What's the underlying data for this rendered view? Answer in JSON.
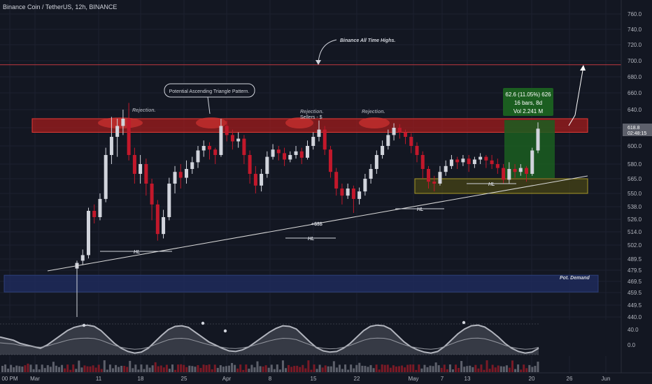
{
  "chart_data": {
    "type": "candlestick",
    "title": "Binance Coin / TetherUS, 12h, BINANCE",
    "y_ticks": [
      "760.0",
      "740.0",
      "720.0",
      "700.0",
      "680.0",
      "660.0",
      "640.0",
      "620.0",
      "600.0",
      "580.0",
      "565.0",
      "550.0",
      "538.0",
      "526.0",
      "514.0",
      "502.0",
      "489.5",
      "479.5",
      "469.5",
      "459.5",
      "449.5",
      "440.0"
    ],
    "x_ticks": [
      "00 PM",
      "Mar",
      "11",
      "18",
      "25",
      "Apr",
      "8",
      "15",
      "22",
      "May",
      "7",
      "13",
      "20",
      "26",
      "Jun"
    ],
    "indicator_ticks": [
      "40.0",
      "0.0"
    ],
    "price_label": {
      "price": "618.8",
      "countdown": "02:48:15"
    },
    "ath_level": 695,
    "annotations": {
      "title_box": "Potential Ascending Triangle Pattern.",
      "ath": "Binance All Time Highs.",
      "rejections": [
        "Rejection.",
        "Rejection.",
        "Rejection."
      ],
      "sellers": "Sellers - $",
      "liquidity": "+$$$",
      "hl": [
        "HL",
        "HL",
        "HL",
        "HL"
      ],
      "demand": "Pot. Demand"
    },
    "measure": {
      "line1": "62.6 (11.05%) 626",
      "line2": "16 bars, 8d",
      "line3": "Vol 2.241 M"
    },
    "zones": {
      "resistance": [
        615,
        630
      ],
      "pot_demand": [
        460,
        475
      ],
      "support": [
        550,
        565
      ]
    },
    "candles": [
      [
        481,
        486,
        439,
        488
      ],
      [
        488,
        493,
        484,
        498
      ],
      [
        493,
        534,
        490,
        537
      ],
      [
        534,
        528,
        522,
        540
      ],
      [
        528,
        545,
        525,
        550
      ],
      [
        545,
        590,
        542,
        598
      ],
      [
        590,
        610,
        580,
        632
      ],
      [
        610,
        622,
        588,
        630
      ],
      [
        622,
        630,
        612,
        640
      ],
      [
        630,
        590,
        584,
        648
      ],
      [
        590,
        570,
        560,
        598
      ],
      [
        570,
        580,
        560,
        590
      ],
      [
        580,
        560,
        548,
        586
      ],
      [
        560,
        540,
        525,
        565
      ],
      [
        540,
        512,
        506,
        544
      ],
      [
        512,
        528,
        508,
        535
      ],
      [
        528,
        560,
        525,
        566
      ],
      [
        560,
        572,
        550,
        578
      ],
      [
        572,
        566,
        555,
        580
      ],
      [
        566,
        575,
        560,
        584
      ],
      [
        575,
        582,
        570,
        588
      ],
      [
        582,
        595,
        576,
        600
      ],
      [
        595,
        600,
        588,
        606
      ],
      [
        600,
        596,
        585,
        604
      ],
      [
        596,
        590,
        580,
        598
      ],
      [
        590,
        622,
        588,
        630
      ],
      [
        622,
        612,
        605,
        628
      ],
      [
        612,
        605,
        596,
        618
      ],
      [
        605,
        608,
        598,
        615
      ],
      [
        608,
        590,
        580,
        612
      ],
      [
        590,
        570,
        560,
        595
      ],
      [
        570,
        558,
        550,
        578
      ],
      [
        558,
        570,
        552,
        575
      ],
      [
        570,
        588,
        566,
        594
      ],
      [
        588,
        596,
        585,
        602
      ],
      [
        596,
        592,
        584,
        600
      ],
      [
        592,
        585,
        578,
        598
      ],
      [
        585,
        590,
        582,
        594
      ],
      [
        590,
        594,
        586,
        600
      ],
      [
        594,
        587,
        580,
        598
      ],
      [
        587,
        600,
        585,
        606
      ],
      [
        600,
        610,
        596,
        615
      ],
      [
        610,
        618,
        605,
        628
      ],
      [
        618,
        596,
        590,
        622
      ],
      [
        596,
        572,
        566,
        600
      ],
      [
        572,
        555,
        548,
        576
      ],
      [
        555,
        548,
        540,
        560
      ],
      [
        548,
        555,
        545,
        560
      ],
      [
        555,
        545,
        532,
        558
      ],
      [
        545,
        552,
        540,
        556
      ],
      [
        552,
        565,
        548,
        570
      ],
      [
        565,
        575,
        560,
        580
      ],
      [
        575,
        590,
        570,
        595
      ],
      [
        590,
        600,
        586,
        606
      ],
      [
        600,
        612,
        596,
        618
      ],
      [
        612,
        620,
        606,
        625
      ],
      [
        620,
        615,
        608,
        624
      ],
      [
        615,
        610,
        602,
        618
      ],
      [
        610,
        600,
        592,
        614
      ],
      [
        600,
        590,
        582,
        604
      ],
      [
        590,
        575,
        565,
        594
      ],
      [
        575,
        562,
        555,
        578
      ],
      [
        562,
        560,
        552,
        568
      ],
      [
        560,
        572,
        558,
        578
      ],
      [
        572,
        578,
        568,
        584
      ],
      [
        578,
        585,
        575,
        590
      ],
      [
        585,
        582,
        575,
        588
      ],
      [
        582,
        586,
        578,
        590
      ],
      [
        586,
        580,
        572,
        590
      ],
      [
        580,
        585,
        576,
        588
      ],
      [
        585,
        588,
        580,
        592
      ],
      [
        588,
        584,
        576,
        590
      ],
      [
        584,
        580,
        575,
        590
      ],
      [
        580,
        576,
        570,
        586
      ],
      [
        576,
        564,
        560,
        580
      ],
      [
        564,
        575,
        560,
        582
      ],
      [
        575,
        572,
        566,
        580
      ],
      [
        572,
        576,
        568,
        580
      ],
      [
        576,
        570,
        562,
        578
      ],
      [
        570,
        595,
        568,
        598
      ],
      [
        595,
        619,
        592,
        626
      ]
    ],
    "indicator": [
      0.55,
      0.5,
      0.45,
      0.35,
      0.3,
      0.25,
      0.2,
      0.3,
      0.45,
      0.6,
      0.75,
      0.85,
      0.9,
      0.92,
      0.88,
      0.75,
      0.55,
      0.35,
      0.2,
      0.1,
      0.05,
      0.08,
      0.2,
      0.4,
      0.6,
      0.78,
      0.88,
      0.9,
      0.85,
      0.7,
      0.55,
      0.4,
      0.3,
      0.2,
      0.12,
      0.1,
      0.15,
      0.25,
      0.4,
      0.55,
      0.7,
      0.82,
      0.9,
      0.88,
      0.8,
      0.6,
      0.4,
      0.22,
      0.12,
      0.08,
      0.1,
      0.2,
      0.35,
      0.55,
      0.75,
      0.88,
      0.92,
      0.9,
      0.8,
      0.6,
      0.4,
      0.25,
      0.15,
      0.08,
      0.05,
      0.1,
      0.25,
      0.45,
      0.65,
      0.8,
      0.9,
      0.92,
      0.86,
      0.72,
      0.55,
      0.35,
      0.2,
      0.1,
      0.05,
      0.08,
      0.2
    ]
  }
}
